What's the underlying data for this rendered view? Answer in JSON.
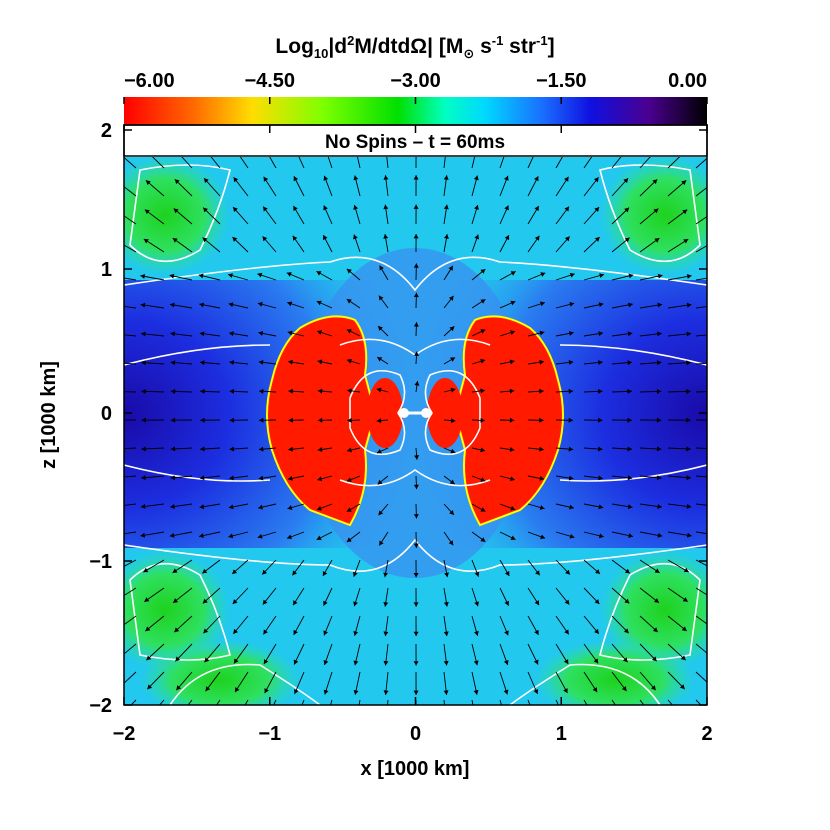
{
  "chart_data": {
    "type": "heatmap",
    "title": "No Spins – t = 60ms",
    "colorbar": {
      "label_prefix": "Log",
      "label_sub": "10",
      "label_mid": "|d",
      "label_sup1": "2",
      "label_tail": "M/dtdΩ| [M",
      "label_sun": "⊙",
      "label_s": " s",
      "label_sup2": "-1",
      "label_str": " str",
      "label_sup3": "-1",
      "label_close": "]",
      "range": [
        -6.0,
        0.0
      ],
      "ticks": [
        -6.0,
        -4.5,
        -3.0,
        -1.5,
        0.0
      ],
      "tick_labels": [
        "−6.00",
        "−4.50",
        "−3.00",
        "−1.50",
        "0.00"
      ],
      "colors": [
        "#ff0000",
        "#ff8000",
        "#ffff00",
        "#00ff00",
        "#00ffff",
        "#0000ff",
        "#4000a0",
        "#000000"
      ]
    },
    "xlabel": "x [1000 km]",
    "ylabel": "z [1000 km]",
    "xlim": [
      -2,
      2
    ],
    "ylim": [
      -2,
      2
    ],
    "xticks": [
      -2,
      -1,
      0,
      1,
      2
    ],
    "xtick_labels": [
      "−2",
      "−1",
      "0",
      "1",
      "2"
    ],
    "yticks": [
      -2,
      -1,
      0,
      1,
      2
    ],
    "ytick_labels": [
      "−2",
      "−1",
      "0",
      "1",
      "2"
    ],
    "field_regions": [
      {
        "name": "ambient",
        "value": -3.1
      },
      {
        "name": "green-corner-lobes",
        "value": -3.6,
        "centers": [
          [
            -1.55,
            1.45
          ],
          [
            1.55,
            1.45
          ],
          [
            -1.55,
            -1.45
          ],
          [
            1.55,
            -1.45
          ]
        ]
      },
      {
        "name": "equatorial-dense-band",
        "value": -1.2,
        "z_extent": [
          -0.9,
          0.9
        ]
      },
      {
        "name": "central-low-density-lobes",
        "value": -6.0,
        "x_extent": [
          -1.0,
          1.0
        ],
        "z_extent": [
          -0.75,
          0.75
        ]
      }
    ],
    "vector_field": "radial outflow velocity arrows",
    "contours": "white contour lines"
  }
}
